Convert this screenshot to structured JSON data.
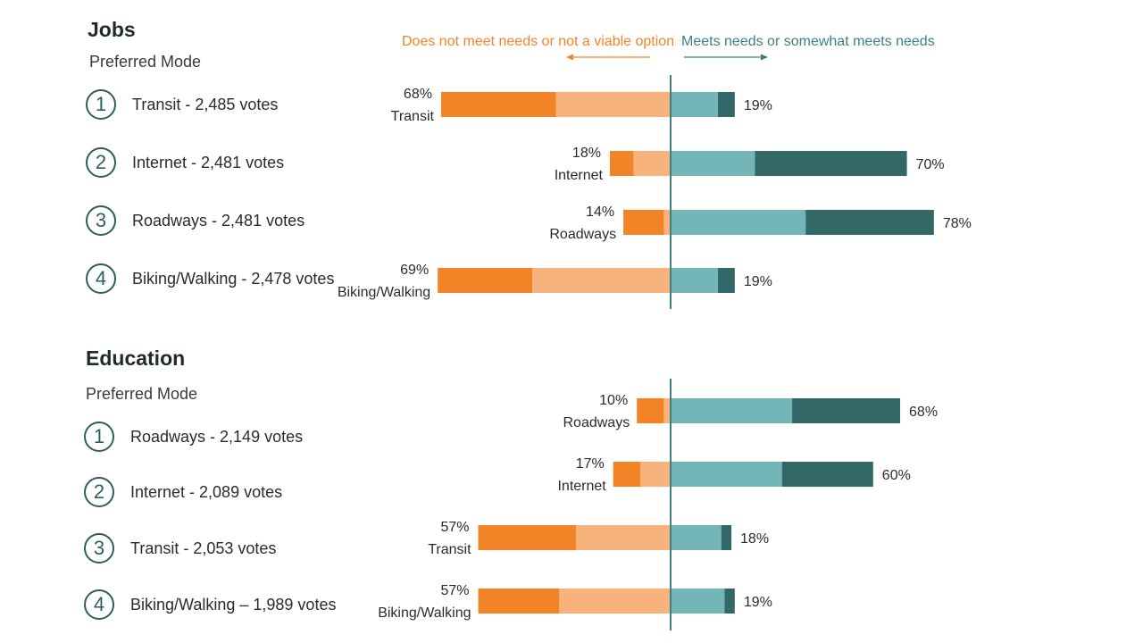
{
  "legend": {
    "negative": "Does not meet needs or not a viable option",
    "positive": "Meets needs or somewhat meets needs"
  },
  "colors": {
    "neg_dark": "#f28427",
    "neg_light": "#f8b37c",
    "pos_light": "#72b6b7",
    "pos_dark": "#336868",
    "axis": "#3f7f80"
  },
  "sections": [
    {
      "title": "Jobs",
      "subtitle": "Preferred Mode",
      "ranks": [
        {
          "number": "1",
          "label": "Transit - 2,485 votes"
        },
        {
          "number": "2",
          "label": "Internet - 2,481 votes"
        },
        {
          "number": "3",
          "label": "Roadways - 2,481 votes"
        },
        {
          "number": "4",
          "label": "Biking/Walking - 2,478 votes"
        }
      ]
    },
    {
      "title": "Education",
      "subtitle": "Preferred Mode",
      "ranks": [
        {
          "number": "1",
          "label": "Roadways - 2,149 votes"
        },
        {
          "number": "2",
          "label": "Internet - 2,089 votes"
        },
        {
          "number": "3",
          "label": "Transit - 2,053 votes"
        },
        {
          "number": "4",
          "label": "Biking/Walking – 1,989 votes"
        }
      ]
    }
  ],
  "chart_data": [
    {
      "type": "bar",
      "orientation": "diverging-horizontal",
      "categories": [
        "Transit",
        "Internet",
        "Roadways",
        "Biking/Walking"
      ],
      "negative_total": [
        68,
        18,
        14,
        69
      ],
      "negative_labels": [
        "68%",
        "18%",
        "14%",
        "69%"
      ],
      "positive_total": [
        19,
        70,
        78,
        19
      ],
      "positive_labels": [
        "19%",
        "70%",
        "78%",
        "19%"
      ],
      "series": [
        {
          "values": [
            34,
            7,
            12,
            28
          ]
        },
        {
          "values": [
            34,
            11,
            2,
            41
          ]
        },
        {
          "values": [
            14,
            25,
            40,
            14
          ]
        },
        {
          "values": [
            5,
            45,
            38,
            5
          ]
        }
      ]
    },
    {
      "type": "bar",
      "orientation": "diverging-horizontal",
      "categories": [
        "Roadways",
        "Internet",
        "Transit",
        "Biking/Walking"
      ],
      "negative_total": [
        10,
        17,
        57,
        57
      ],
      "negative_labels": [
        "10%",
        "17%",
        "57%",
        "57%"
      ],
      "positive_total": [
        68,
        60,
        18,
        19
      ],
      "positive_labels": [
        "68%",
        "60%",
        "18%",
        "19%"
      ],
      "series": [
        {
          "values": [
            8,
            8,
            29,
            24
          ]
        },
        {
          "values": [
            2,
            9,
            28,
            33
          ]
        },
        {
          "values": [
            36,
            33,
            15,
            16
          ]
        },
        {
          "values": [
            32,
            27,
            3,
            3
          ]
        }
      ]
    }
  ]
}
